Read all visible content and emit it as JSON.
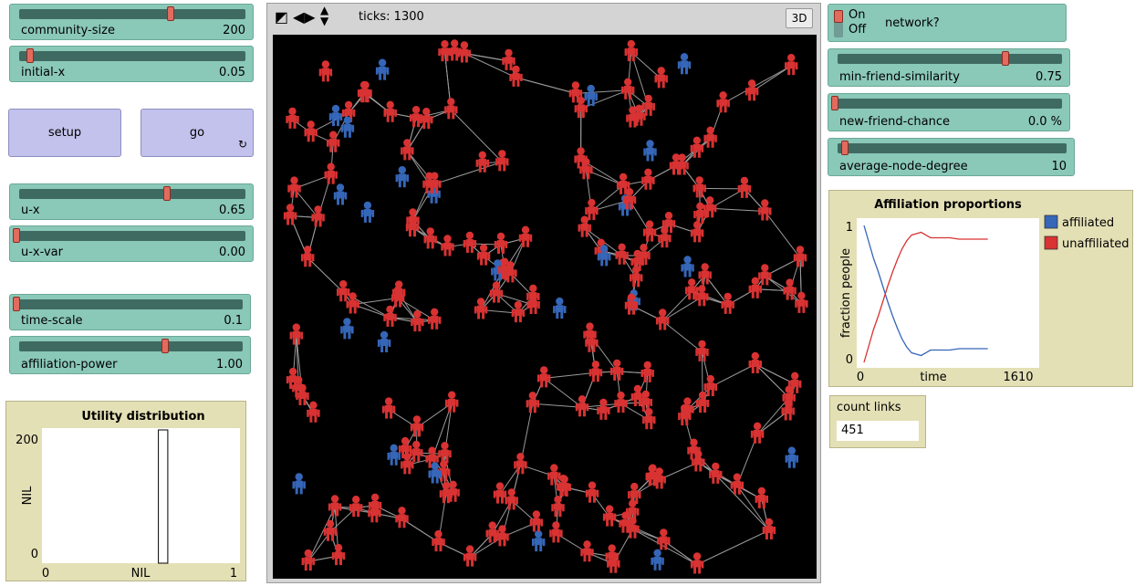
{
  "sliders": {
    "community_size": {
      "label": "community-size",
      "value": "200",
      "fraction": 0.68
    },
    "initial_x": {
      "label": "initial-x",
      "value": "0.05",
      "fraction": 0.05
    },
    "u_x": {
      "label": "u-x",
      "value": "0.65",
      "fraction": 0.65
    },
    "u_x_var": {
      "label": "u-x-var",
      "value": "0.00",
      "fraction": 0.0
    },
    "time_scale": {
      "label": "time-scale",
      "value": "0.1",
      "fraction": 0.0
    },
    "affiliation_power": {
      "label": "affiliation-power",
      "value": "1.00",
      "fraction": 0.67
    },
    "min_friend_similarity": {
      "label": "min-friend-similarity",
      "value": "0.75",
      "fraction": 0.75
    },
    "new_friend_chance": {
      "label": "new-friend-chance",
      "value": "0.0 %",
      "fraction": 0.0
    },
    "average_node_degree": {
      "label": "average-node-degree",
      "value": "10",
      "fraction": 0.03
    }
  },
  "buttons": {
    "setup": "setup",
    "go": "go",
    "go_icon": "forever-icon"
  },
  "view": {
    "ticks_label": "ticks: 1300",
    "three_d": "3D"
  },
  "switch": {
    "on": "On",
    "off": "Off",
    "label": "network?"
  },
  "monitor": {
    "label": "count links",
    "value": "451"
  },
  "colors": {
    "affiliated": "#3566b8",
    "unaffiliated": "#d93232",
    "slider": "#8ac8b8",
    "button": "#c2c2ec",
    "plot_bg": "#e4e0b6"
  },
  "chart_data": [
    {
      "type": "line",
      "title": "Affiliation proportions",
      "xlabel": "time",
      "ylabel": "fraction people",
      "xlim": [
        0,
        1610
      ],
      "ylim": [
        0,
        1
      ],
      "x_ticks": [
        "0",
        "1610"
      ],
      "y_ticks": [
        "0",
        "1"
      ],
      "series": [
        {
          "name": "affiliated",
          "color": "#3566b8",
          "x": [
            0,
            50,
            100,
            150,
            200,
            250,
            300,
            350,
            400,
            450,
            500,
            550,
            600,
            700,
            800,
            900,
            1000,
            1100,
            1200,
            1300
          ],
          "y": [
            1.0,
            0.88,
            0.76,
            0.66,
            0.55,
            0.44,
            0.34,
            0.25,
            0.17,
            0.11,
            0.07,
            0.06,
            0.05,
            0.09,
            0.09,
            0.09,
            0.1,
            0.1,
            0.1,
            0.1
          ]
        },
        {
          "name": "unaffiliated",
          "color": "#d93232",
          "x": [
            0,
            50,
            100,
            150,
            200,
            250,
            300,
            350,
            400,
            450,
            500,
            550,
            600,
            700,
            800,
            900,
            1000,
            1100,
            1200,
            1300
          ],
          "y": [
            0.0,
            0.12,
            0.24,
            0.34,
            0.45,
            0.56,
            0.66,
            0.75,
            0.83,
            0.89,
            0.93,
            0.94,
            0.95,
            0.91,
            0.91,
            0.91,
            0.9,
            0.9,
            0.9,
            0.9
          ]
        }
      ]
    },
    {
      "type": "bar",
      "title": "Utility distribution",
      "xlabel": "NIL",
      "ylabel": "NIL",
      "xlim": [
        0,
        1
      ],
      "ylim": [
        0,
        200
      ],
      "x_ticks": [
        "0",
        "1"
      ],
      "y_ticks": [
        "0",
        "200"
      ],
      "bins": [
        {
          "x0": 0.6,
          "x1": 0.65,
          "value": 200
        }
      ]
    }
  ]
}
